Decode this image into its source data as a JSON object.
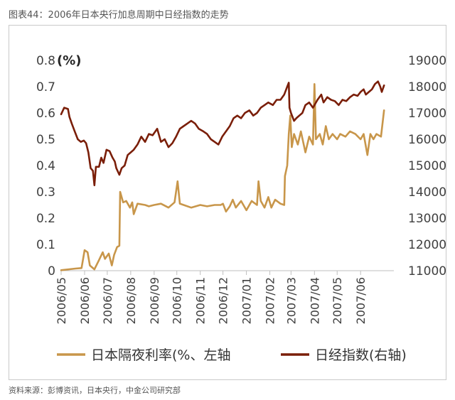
{
  "figure_title": "图表44：2006年日本央行加息周期中日经指数的走势",
  "source_note": "资料来源：彭博资讯，日本央行，中金公司研究部",
  "chart_data": {
    "type": "line",
    "left_axis_unit": "(%)",
    "left_axis": {
      "ylim": [
        0,
        0.8
      ],
      "ticks": [
        "0",
        "0.1",
        "0.2",
        "0.3",
        "0.4",
        "0.5",
        "0.6",
        "0.7",
        "0.8"
      ]
    },
    "right_axis": {
      "ylim": [
        11000,
        19000
      ],
      "ticks": [
        "11000",
        "12000",
        "13000",
        "14000",
        "15000",
        "16000",
        "17000",
        "18000",
        "19000"
      ]
    },
    "x_ticks": [
      "2006/05",
      "2006/06",
      "2006/07",
      "2006/08",
      "2006/09",
      "2006/10",
      "2006/11",
      "2006/12",
      "2007/01",
      "2007/02",
      "2007/03",
      "2007/04",
      "2007/05",
      "2007/06"
    ],
    "x_range": [
      "2006-05-01",
      "2007-07-15"
    ],
    "grid": false,
    "legend_position": "bottom",
    "series": [
      {
        "name": "日本隔夜利率(%、左轴",
        "axis": "left",
        "color": "#C8964A",
        "points": [
          [
            "2006-05-01",
            0.002
          ],
          [
            "2006-05-20",
            0.008
          ],
          [
            "2006-05-28",
            0.01
          ],
          [
            "2006-06-01",
            0.078
          ],
          [
            "2006-06-05",
            0.07
          ],
          [
            "2006-06-08",
            0.02
          ],
          [
            "2006-06-14",
            0.005
          ],
          [
            "2006-06-20",
            0.04
          ],
          [
            "2006-06-25",
            0.07
          ],
          [
            "2006-06-28",
            0.045
          ],
          [
            "2006-07-03",
            0.065
          ],
          [
            "2006-07-07",
            0.02
          ],
          [
            "2006-07-10",
            0.06
          ],
          [
            "2006-07-14",
            0.09
          ],
          [
            "2006-07-17",
            0.095
          ],
          [
            "2006-07-18",
            0.3
          ],
          [
            "2006-07-22",
            0.26
          ],
          [
            "2006-07-26",
            0.265
          ],
          [
            "2006-07-31",
            0.24
          ],
          [
            "2006-08-03",
            0.26
          ],
          [
            "2006-08-05",
            0.215
          ],
          [
            "2006-08-10",
            0.255
          ],
          [
            "2006-08-20",
            0.25
          ],
          [
            "2006-08-25",
            0.245
          ],
          [
            "2006-09-01",
            0.25
          ],
          [
            "2006-09-10",
            0.255
          ],
          [
            "2006-09-20",
            0.24
          ],
          [
            "2006-09-28",
            0.26
          ],
          [
            "2006-10-02",
            0.34
          ],
          [
            "2006-10-05",
            0.255
          ],
          [
            "2006-10-10",
            0.25
          ],
          [
            "2006-10-20",
            0.24
          ],
          [
            "2006-11-01",
            0.25
          ],
          [
            "2006-11-10",
            0.245
          ],
          [
            "2006-11-20",
            0.25
          ],
          [
            "2006-11-28",
            0.25
          ],
          [
            "2006-12-01",
            0.255
          ],
          [
            "2006-12-05",
            0.225
          ],
          [
            "2006-12-10",
            0.245
          ],
          [
            "2006-12-14",
            0.27
          ],
          [
            "2006-12-18",
            0.24
          ],
          [
            "2006-12-25",
            0.265
          ],
          [
            "2007-01-01",
            0.23
          ],
          [
            "2007-01-08",
            0.265
          ],
          [
            "2007-01-15",
            0.25
          ],
          [
            "2007-01-17",
            0.34
          ],
          [
            "2007-01-20",
            0.265
          ],
          [
            "2007-01-25",
            0.24
          ],
          [
            "2007-01-30",
            0.28
          ],
          [
            "2007-02-03",
            0.24
          ],
          [
            "2007-02-08",
            0.27
          ],
          [
            "2007-02-15",
            0.255
          ],
          [
            "2007-02-20",
            0.25
          ],
          [
            "2007-02-21",
            0.36
          ],
          [
            "2007-02-24",
            0.4
          ],
          [
            "2007-02-26",
            0.52
          ],
          [
            "2007-02-28",
            0.59
          ],
          [
            "2007-03-02",
            0.47
          ],
          [
            "2007-03-05",
            0.52
          ],
          [
            "2007-03-10",
            0.48
          ],
          [
            "2007-03-14",
            0.53
          ],
          [
            "2007-03-20",
            0.45
          ],
          [
            "2007-03-25",
            0.51
          ],
          [
            "2007-03-30",
            0.48
          ],
          [
            "2007-04-01",
            0.71
          ],
          [
            "2007-04-03",
            0.5
          ],
          [
            "2007-04-08",
            0.52
          ],
          [
            "2007-04-12",
            0.48
          ],
          [
            "2007-04-16",
            0.55
          ],
          [
            "2007-04-20",
            0.5
          ],
          [
            "2007-04-25",
            0.52
          ],
          [
            "2007-05-01",
            0.5
          ],
          [
            "2007-05-05",
            0.52
          ],
          [
            "2007-05-12",
            0.51
          ],
          [
            "2007-05-18",
            0.53
          ],
          [
            "2007-05-25",
            0.52
          ],
          [
            "2007-06-01",
            0.5
          ],
          [
            "2007-06-05",
            0.52
          ],
          [
            "2007-06-10",
            0.44
          ],
          [
            "2007-06-14",
            0.52
          ],
          [
            "2007-06-18",
            0.5
          ],
          [
            "2007-06-22",
            0.52
          ],
          [
            "2007-06-28",
            0.51
          ],
          [
            "2007-07-02",
            0.61
          ]
        ]
      },
      {
        "name": "日经指数(右轴)",
        "axis": "right",
        "color": "#7A1E08",
        "points": [
          [
            "2006-05-01",
            16950
          ],
          [
            "2006-05-05",
            17200
          ],
          [
            "2006-05-10",
            17150
          ],
          [
            "2006-05-12",
            16850
          ],
          [
            "2006-05-15",
            16600
          ],
          [
            "2006-05-19",
            16300
          ],
          [
            "2006-05-23",
            16000
          ],
          [
            "2006-05-27",
            15900
          ],
          [
            "2006-05-31",
            15950
          ],
          [
            "2006-06-03",
            15850
          ],
          [
            "2006-06-06",
            15500
          ],
          [
            "2006-06-09",
            14900
          ],
          [
            "2006-06-12",
            14800
          ],
          [
            "2006-06-14",
            14250
          ],
          [
            "2006-06-16",
            14950
          ],
          [
            "2006-06-20",
            14950
          ],
          [
            "2006-06-23",
            15300
          ],
          [
            "2006-06-26",
            15100
          ],
          [
            "2006-06-30",
            15600
          ],
          [
            "2006-07-04",
            15550
          ],
          [
            "2006-07-08",
            15300
          ],
          [
            "2006-07-11",
            15150
          ],
          [
            "2006-07-13",
            14900
          ],
          [
            "2006-07-17",
            14650
          ],
          [
            "2006-07-20",
            14900
          ],
          [
            "2006-07-24",
            15000
          ],
          [
            "2006-07-28",
            15400
          ],
          [
            "2006-08-01",
            15500
          ],
          [
            "2006-08-05",
            15600
          ],
          [
            "2006-08-10",
            15800
          ],
          [
            "2006-08-15",
            16100
          ],
          [
            "2006-08-20",
            15900
          ],
          [
            "2006-08-25",
            16200
          ],
          [
            "2006-08-30",
            16150
          ],
          [
            "2006-09-05",
            16400
          ],
          [
            "2006-09-10",
            15900
          ],
          [
            "2006-09-15",
            16000
          ],
          [
            "2006-09-20",
            15700
          ],
          [
            "2006-09-25",
            15850
          ],
          [
            "2006-09-30",
            16100
          ],
          [
            "2006-10-05",
            16400
          ],
          [
            "2006-10-10",
            16500
          ],
          [
            "2006-10-15",
            16600
          ],
          [
            "2006-10-20",
            16700
          ],
          [
            "2006-10-25",
            16600
          ],
          [
            "2006-10-30",
            16400
          ],
          [
            "2006-11-05",
            16300
          ],
          [
            "2006-11-10",
            16200
          ],
          [
            "2006-11-15",
            16000
          ],
          [
            "2006-11-20",
            15900
          ],
          [
            "2006-11-25",
            15800
          ],
          [
            "2006-11-30",
            16100
          ],
          [
            "2006-12-05",
            16300
          ],
          [
            "2006-12-10",
            16500
          ],
          [
            "2006-12-15",
            16800
          ],
          [
            "2006-12-20",
            16900
          ],
          [
            "2006-12-25",
            16800
          ],
          [
            "2006-12-30",
            17000
          ],
          [
            "2007-01-05",
            17100
          ],
          [
            "2007-01-10",
            16900
          ],
          [
            "2007-01-15",
            17000
          ],
          [
            "2007-01-20",
            17200
          ],
          [
            "2007-01-25",
            17300
          ],
          [
            "2007-01-30",
            17400
          ],
          [
            "2007-02-05",
            17300
          ],
          [
            "2007-02-10",
            17500
          ],
          [
            "2007-02-15",
            17500
          ],
          [
            "2007-02-20",
            17700
          ],
          [
            "2007-02-24",
            18000
          ],
          [
            "2007-02-26",
            18150
          ],
          [
            "2007-02-27",
            17200
          ],
          [
            "2007-03-01",
            17000
          ],
          [
            "2007-03-05",
            16700
          ],
          [
            "2007-03-08",
            16800
          ],
          [
            "2007-03-12",
            16900
          ],
          [
            "2007-03-16",
            17000
          ],
          [
            "2007-03-20",
            17300
          ],
          [
            "2007-03-25",
            17400
          ],
          [
            "2007-03-30",
            17200
          ],
          [
            "2007-04-05",
            17500
          ],
          [
            "2007-04-10",
            17700
          ],
          [
            "2007-04-13",
            17400
          ],
          [
            "2007-04-18",
            17600
          ],
          [
            "2007-04-23",
            17500
          ],
          [
            "2007-04-28",
            17450
          ],
          [
            "2007-05-03",
            17300
          ],
          [
            "2007-05-08",
            17500
          ],
          [
            "2007-05-13",
            17450
          ],
          [
            "2007-05-18",
            17600
          ],
          [
            "2007-05-23",
            17700
          ],
          [
            "2007-05-28",
            17650
          ],
          [
            "2007-06-01",
            17800
          ],
          [
            "2007-06-05",
            17900
          ],
          [
            "2007-06-08",
            17700
          ],
          [
            "2007-06-12",
            17800
          ],
          [
            "2007-06-16",
            17900
          ],
          [
            "2007-06-20",
            18100
          ],
          [
            "2007-06-24",
            18200
          ],
          [
            "2007-06-27",
            18000
          ],
          [
            "2007-06-29",
            17800
          ],
          [
            "2007-07-02",
            18050
          ]
        ]
      }
    ]
  }
}
